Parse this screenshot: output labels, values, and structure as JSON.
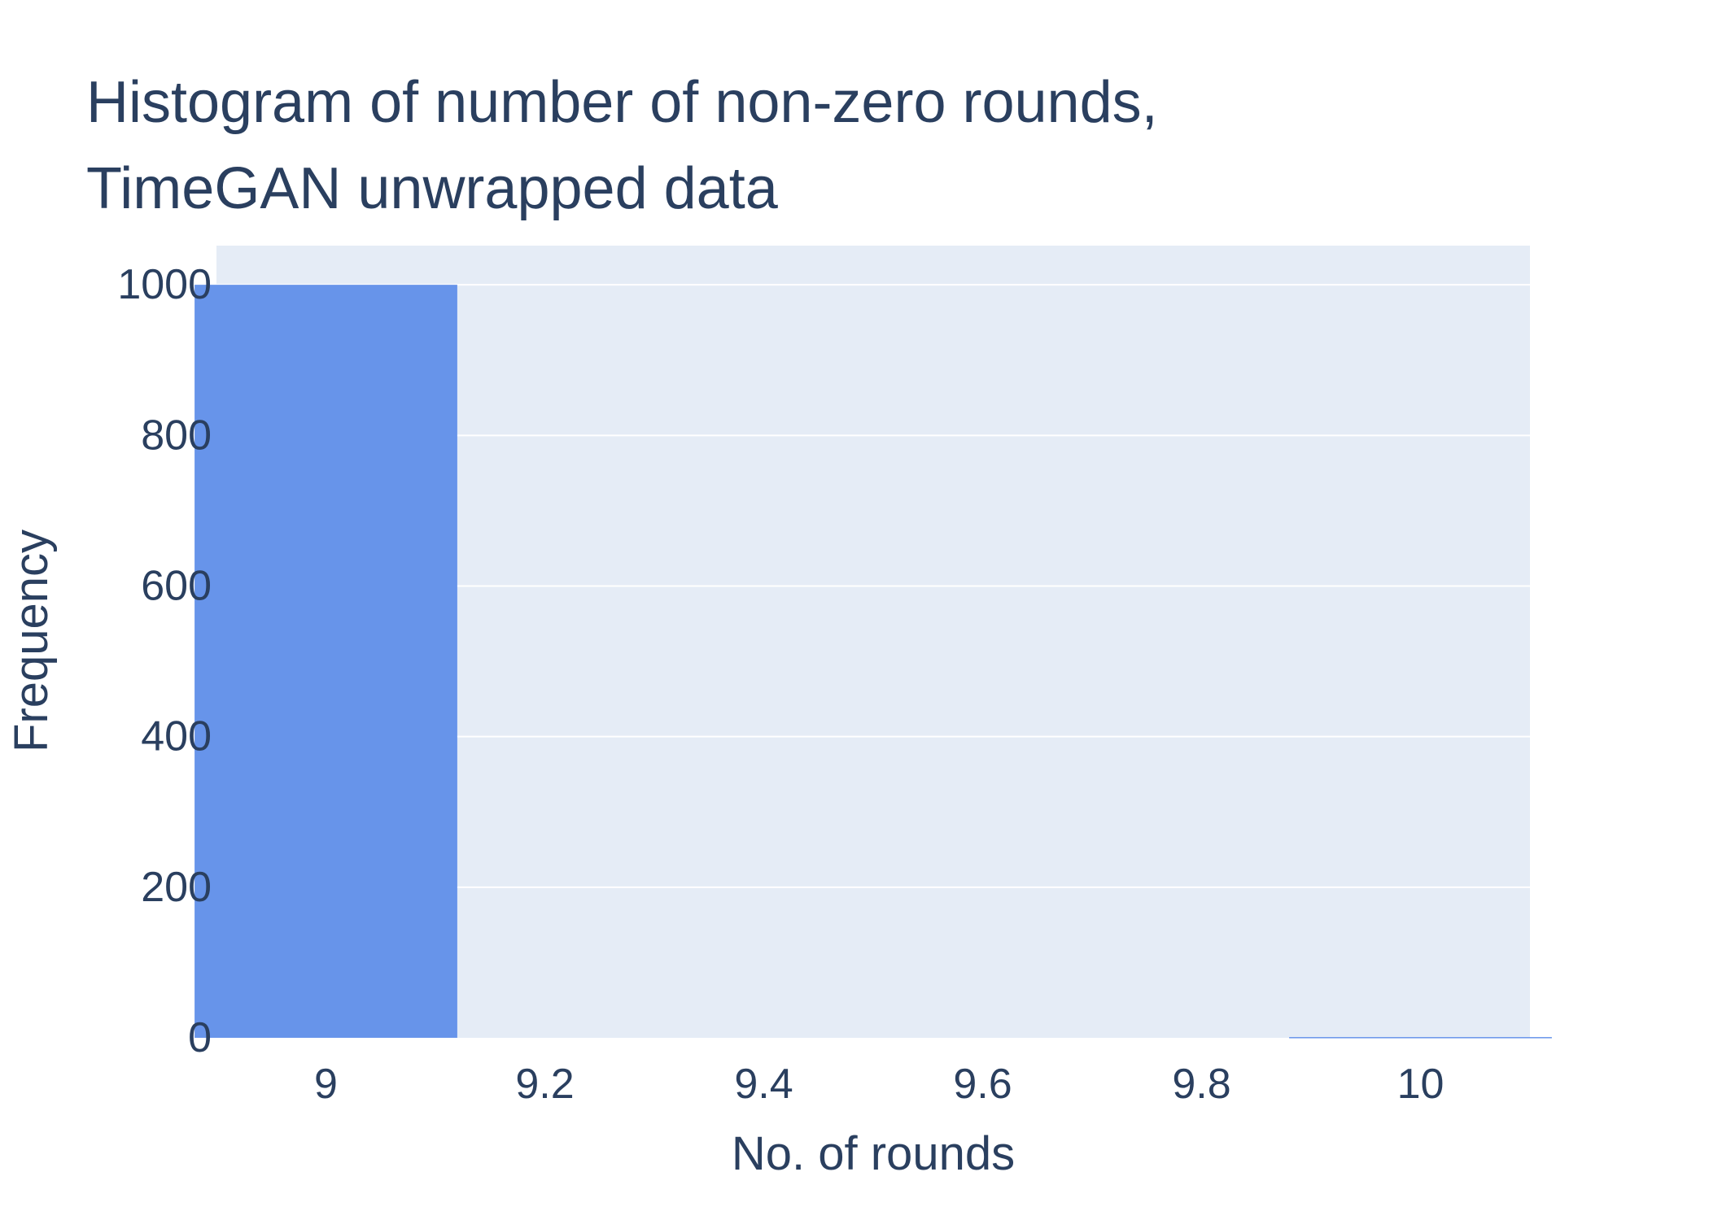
{
  "chart_data": {
    "type": "bar",
    "title_lines": [
      "Histogram of number of non-zero rounds,",
      "TimeGAN unwrapped data"
    ],
    "xlabel": "No. of rounds",
    "ylabel": "Frequency",
    "bin_width": 0.24,
    "bins": [
      {
        "x": 9,
        "count": 1000
      },
      {
        "x": 10,
        "count": 1
      }
    ],
    "xlim": [
      8.9,
      10.1
    ],
    "ylim": [
      0,
      1052
    ],
    "x_ticks": [
      {
        "value": 9,
        "label": "9"
      },
      {
        "value": 9.2,
        "label": "9.2"
      },
      {
        "value": 9.4,
        "label": "9.4"
      },
      {
        "value": 9.6,
        "label": "9.6"
      },
      {
        "value": 9.8,
        "label": "9.8"
      },
      {
        "value": 10,
        "label": "10"
      }
    ],
    "y_ticks": [
      {
        "value": 0,
        "label": "0"
      },
      {
        "value": 200,
        "label": "200"
      },
      {
        "value": 400,
        "label": "400"
      },
      {
        "value": 600,
        "label": "600"
      },
      {
        "value": 800,
        "label": "800"
      },
      {
        "value": 1000,
        "label": "1000"
      }
    ],
    "grid": true,
    "colors": {
      "bar": "#6794ea",
      "plot_bg": "#e5ecf6",
      "grid": "#ffffff",
      "text": "#2a3f5f"
    }
  }
}
